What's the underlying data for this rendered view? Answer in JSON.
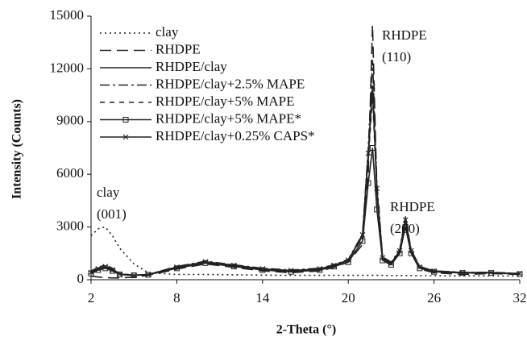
{
  "chart_data": {
    "type": "line",
    "xlabel": "2-Theta (°)",
    "ylabel": "Intensity (Counts)",
    "xlim": [
      2,
      32
    ],
    "xticks": [
      2,
      8,
      14,
      20,
      26,
      32
    ],
    "ylim": [
      0,
      15000
    ],
    "yticks": [
      0,
      3000,
      6000,
      9000,
      12000,
      15000
    ],
    "grid": false,
    "legend": "upper left",
    "annotations": [
      [
        "clay",
        "(001)"
      ],
      [
        "RHDPE",
        "(110)"
      ],
      [
        "RHDPE",
        "(200)"
      ]
    ],
    "x": [
      2,
      2.5,
      3,
      3.5,
      4,
      5,
      6,
      8,
      10,
      12,
      14,
      16,
      18,
      19,
      20,
      21,
      21.4,
      21.7,
      22,
      22.4,
      23,
      23.6,
      24,
      24.4,
      25,
      26,
      28,
      30,
      32
    ],
    "series": [
      {
        "name": "clay",
        "color": "#222",
        "dash": "2,4",
        "marker": null,
        "values": [
          2500,
          2900,
          3000,
          2500,
          1800,
          900,
          400,
          300,
          300,
          280,
          260,
          250,
          250,
          250,
          250,
          250,
          250,
          250,
          250,
          250,
          240,
          240,
          240,
          240,
          230,
          230,
          220,
          220,
          210
        ]
      },
      {
        "name": "RHDPE",
        "color": "#222",
        "dash": "14,7",
        "marker": null,
        "values": [
          200,
          150,
          120,
          100,
          100,
          150,
          250,
          600,
          900,
          700,
          500,
          400,
          500,
          700,
          1000,
          2000,
          6000,
          14500,
          5000,
          1000,
          900,
          1500,
          3200,
          1500,
          600,
          400,
          300,
          350,
          300
        ]
      },
      {
        "name": "RHDPE/clay",
        "color": "#222",
        "dash": "none",
        "marker": null,
        "values": [
          400,
          600,
          700,
          500,
          300,
          250,
          300,
          700,
          1000,
          800,
          600,
          500,
          600,
          800,
          1100,
          2500,
          7000,
          11000,
          5000,
          1200,
          900,
          1600,
          3500,
          1600,
          700,
          500,
          400,
          400,
          350
        ]
      },
      {
        "name": "RHDPE/clay+2.5% MAPE",
        "color": "#222",
        "dash": "12,4,3,4",
        "marker": null,
        "values": [
          450,
          650,
          800,
          600,
          350,
          250,
          300,
          750,
          1050,
          850,
          650,
          550,
          650,
          850,
          1150,
          2600,
          7500,
          12500,
          5500,
          1300,
          1000,
          1700,
          3600,
          1700,
          750,
          500,
          420,
          420,
          360
        ]
      },
      {
        "name": "RHDPE/clay+5% MAPE",
        "color": "#222",
        "dash": "6,6",
        "marker": null,
        "values": [
          500,
          700,
          850,
          650,
          350,
          250,
          300,
          700,
          950,
          800,
          600,
          500,
          600,
          800,
          1100,
          2400,
          6800,
          10500,
          5000,
          1200,
          950,
          1600,
          3300,
          1600,
          700,
          480,
          400,
          400,
          340
        ]
      },
      {
        "name": "RHDPE/clay+5% MAPE*",
        "color": "#222",
        "dash": "none",
        "marker": "square",
        "values": [
          350,
          550,
          650,
          500,
          300,
          250,
          280,
          650,
          950,
          750,
          550,
          450,
          550,
          750,
          1000,
          2200,
          5500,
          7500,
          4000,
          1100,
          850,
          1500,
          3000,
          1500,
          650,
          450,
          380,
          380,
          320
        ]
      },
      {
        "name": "RHDPE/clay+0.25% CAPS*",
        "color": "#222",
        "dash": "none",
        "marker": "x",
        "values": [
          420,
          620,
          750,
          550,
          320,
          260,
          300,
          720,
          1020,
          820,
          620,
          520,
          620,
          820,
          1120,
          2550,
          7200,
          11000,
          5200,
          1250,
          920,
          1650,
          3400,
          1650,
          720,
          490,
          410,
          410,
          350
        ]
      }
    ]
  }
}
